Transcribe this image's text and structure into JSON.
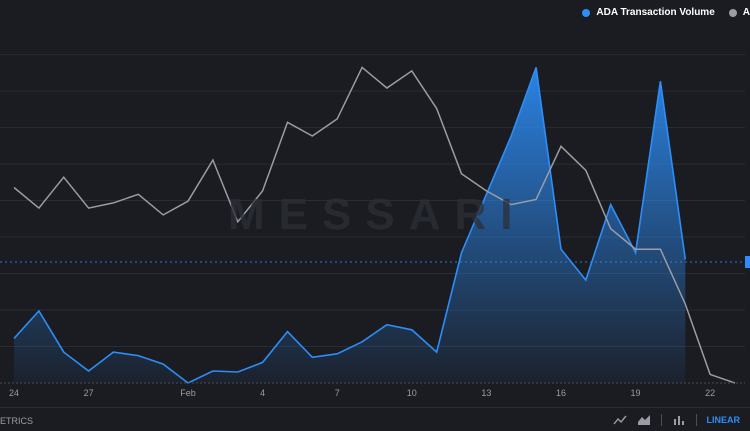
{
  "chart_data": {
    "type": "area",
    "x_ticks": [
      "24",
      "27",
      "Feb",
      "4",
      "7",
      "10",
      "13",
      "16",
      "19",
      "22"
    ],
    "series": [
      {
        "name": "ADA Transaction Volume",
        "color": "#2c8ef8",
        "kind": "area",
        "values": [
          13,
          21,
          9,
          3.5,
          9,
          8,
          5.5,
          0,
          3.5,
          3.2,
          6,
          15,
          7.5,
          8.5,
          12,
          17,
          15.5,
          9,
          38,
          55,
          72,
          92,
          39,
          30,
          52,
          38,
          88,
          36
        ]
      },
      {
        "name": "A",
        "color": "#9a9ca6",
        "kind": "line",
        "values": [
          57,
          51,
          60,
          51,
          52.5,
          55,
          49,
          53,
          65,
          47,
          56,
          76,
          72,
          77,
          92,
          86,
          91,
          80,
          61,
          56,
          52,
          53.5,
          69,
          62,
          45,
          39,
          39,
          23,
          2.5,
          0
        ]
      }
    ],
    "ylim": [
      0,
      100
    ],
    "grid": true,
    "legend_position": "top-right",
    "watermark": "MESSARI"
  },
  "footer": {
    "brand": "ETRICS",
    "scale_label": "LINEAR"
  },
  "icons": {
    "line_chart": "line-chart-icon",
    "area_chart": "area-chart-icon",
    "bar_chart": "bar-chart-icon"
  }
}
